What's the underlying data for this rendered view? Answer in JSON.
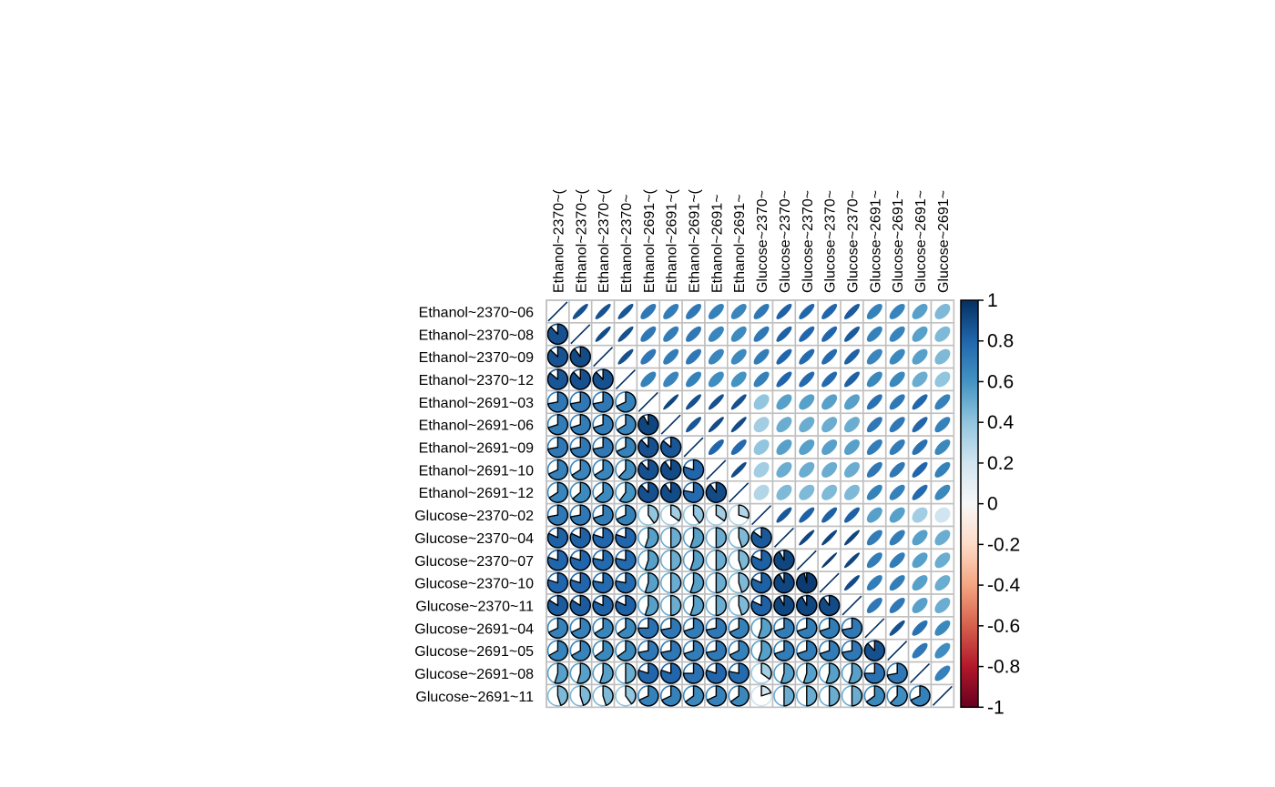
{
  "chart_data": {
    "type": "heatmap",
    "title": "",
    "variables": [
      "Ethanol~2370~06",
      "Ethanol~2370~08",
      "Ethanol~2370~09",
      "Ethanol~2370~12",
      "Ethanol~2691~03",
      "Ethanol~2691~06",
      "Ethanol~2691~09",
      "Ethanol~2691~10",
      "Ethanol~2691~12",
      "Glucose~2370~02",
      "Glucose~2370~04",
      "Glucose~2370~07",
      "Glucose~2370~10",
      "Glucose~2370~11",
      "Glucose~2691~04",
      "Glucose~2691~05",
      "Glucose~2691~08",
      "Glucose~2691~11"
    ],
    "column_labels": [
      "Ethanol~2370~(",
      "Ethanol~2370~(",
      "Ethanol~2370~(",
      "Ethanol~2370~",
      "Ethanol~2691~(",
      "Ethanol~2691~(",
      "Ethanol~2691~(",
      "Ethanol~2691~",
      "Ethanol~2691~",
      "Glucose~2370~",
      "Glucose~2370~",
      "Glucose~2370~",
      "Glucose~2370~",
      "Glucose~2370~",
      "Glucose~2691~",
      "Glucose~2691~",
      "Glucose~2691~",
      "Glucose~2691~"
    ],
    "upper_method": "ellipse",
    "lower_method": "pie",
    "matrix": [
      [
        1.0,
        0.88,
        0.87,
        0.86,
        0.72,
        0.7,
        0.72,
        0.68,
        0.66,
        0.72,
        0.82,
        0.8,
        0.8,
        0.84,
        0.68,
        0.67,
        0.55,
        0.45
      ],
      [
        0.88,
        1.0,
        0.9,
        0.88,
        0.72,
        0.7,
        0.72,
        0.66,
        0.64,
        0.72,
        0.82,
        0.8,
        0.8,
        0.84,
        0.68,
        0.67,
        0.55,
        0.45
      ],
      [
        0.87,
        0.9,
        1.0,
        0.88,
        0.72,
        0.7,
        0.72,
        0.66,
        0.64,
        0.7,
        0.8,
        0.78,
        0.78,
        0.82,
        0.66,
        0.65,
        0.55,
        0.45
      ],
      [
        0.86,
        0.88,
        0.88,
        1.0,
        0.68,
        0.66,
        0.68,
        0.62,
        0.6,
        0.68,
        0.8,
        0.78,
        0.78,
        0.82,
        0.65,
        0.65,
        0.5,
        0.4
      ],
      [
        0.72,
        0.72,
        0.72,
        0.68,
        1.0,
        0.92,
        0.88,
        0.88,
        0.88,
        0.4,
        0.55,
        0.55,
        0.55,
        0.55,
        0.75,
        0.72,
        0.8,
        0.68
      ],
      [
        0.7,
        0.7,
        0.7,
        0.66,
        0.92,
        1.0,
        0.86,
        0.9,
        0.9,
        0.35,
        0.5,
        0.5,
        0.5,
        0.5,
        0.72,
        0.72,
        0.8,
        0.68
      ],
      [
        0.72,
        0.72,
        0.72,
        0.68,
        0.88,
        0.86,
        1.0,
        0.8,
        0.78,
        0.4,
        0.55,
        0.55,
        0.55,
        0.55,
        0.7,
        0.7,
        0.75,
        0.65
      ],
      [
        0.68,
        0.66,
        0.66,
        0.62,
        0.88,
        0.9,
        0.8,
        1.0,
        0.9,
        0.35,
        0.5,
        0.5,
        0.5,
        0.5,
        0.72,
        0.72,
        0.8,
        0.68
      ],
      [
        0.66,
        0.64,
        0.64,
        0.6,
        0.88,
        0.9,
        0.78,
        0.9,
        1.0,
        0.3,
        0.45,
        0.45,
        0.45,
        0.45,
        0.68,
        0.68,
        0.78,
        0.65
      ],
      [
        0.72,
        0.72,
        0.7,
        0.68,
        0.4,
        0.35,
        0.4,
        0.35,
        0.3,
        1.0,
        0.85,
        0.82,
        0.82,
        0.82,
        0.55,
        0.55,
        0.35,
        0.2
      ],
      [
        0.82,
        0.82,
        0.8,
        0.8,
        0.55,
        0.5,
        0.55,
        0.5,
        0.45,
        0.85,
        1.0,
        0.92,
        0.92,
        0.92,
        0.7,
        0.7,
        0.55,
        0.5
      ],
      [
        0.8,
        0.8,
        0.78,
        0.78,
        0.55,
        0.5,
        0.55,
        0.5,
        0.45,
        0.82,
        0.92,
        1.0,
        0.96,
        0.92,
        0.7,
        0.7,
        0.55,
        0.5
      ],
      [
        0.8,
        0.8,
        0.78,
        0.78,
        0.55,
        0.5,
        0.55,
        0.5,
        0.45,
        0.82,
        0.92,
        0.96,
        1.0,
        0.9,
        0.7,
        0.7,
        0.55,
        0.5
      ],
      [
        0.84,
        0.84,
        0.82,
        0.82,
        0.55,
        0.5,
        0.55,
        0.5,
        0.45,
        0.82,
        0.92,
        0.92,
        0.9,
        1.0,
        0.72,
        0.72,
        0.55,
        0.5
      ],
      [
        0.68,
        0.68,
        0.66,
        0.65,
        0.75,
        0.72,
        0.7,
        0.72,
        0.68,
        0.55,
        0.7,
        0.7,
        0.7,
        0.72,
        1.0,
        0.88,
        0.75,
        0.65
      ],
      [
        0.67,
        0.67,
        0.65,
        0.65,
        0.72,
        0.72,
        0.7,
        0.72,
        0.68,
        0.55,
        0.7,
        0.7,
        0.7,
        0.72,
        0.88,
        1.0,
        0.72,
        0.62
      ],
      [
        0.55,
        0.55,
        0.55,
        0.5,
        0.8,
        0.8,
        0.75,
        0.8,
        0.78,
        0.35,
        0.55,
        0.55,
        0.55,
        0.55,
        0.75,
        0.72,
        1.0,
        0.68
      ],
      [
        0.45,
        0.45,
        0.45,
        0.4,
        0.68,
        0.68,
        0.65,
        0.68,
        0.65,
        0.2,
        0.5,
        0.5,
        0.5,
        0.5,
        0.65,
        0.62,
        0.68,
        1.0
      ]
    ],
    "colorbar": {
      "range": [
        -1,
        1
      ],
      "tick_labels": [
        "1",
        "0.8",
        "0.6",
        "0.4",
        "0.2",
        "0",
        "-0.2",
        "-0.4",
        "-0.6",
        "-0.8",
        "-1"
      ],
      "colors": [
        "#053061",
        "#2166ac",
        "#4393c3",
        "#92c5de",
        "#d1e5f0",
        "#f7f7f7",
        "#fddbc7",
        "#f4a582",
        "#d6604d",
        "#b2182b",
        "#67001f"
      ]
    },
    "grid": true
  }
}
